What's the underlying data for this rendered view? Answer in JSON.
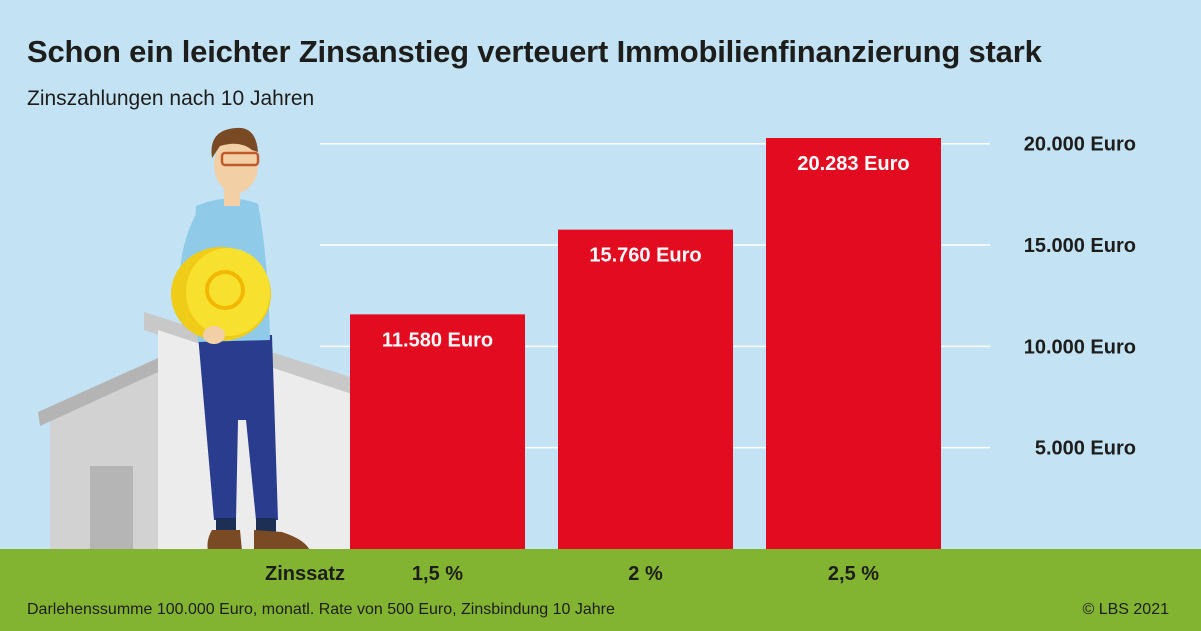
{
  "chart_data": {
    "type": "bar",
    "title": "Schon ein leichter Zinsanstieg verteuert Immobilienfinanzierung stark",
    "subtitle": "Zinszahlungen nach 10 Jahren",
    "xlabel": "Zinssatz",
    "ylabel": "",
    "categories": [
      "1,5 %",
      "2 %",
      "2,5 %"
    ],
    "values": [
      11580,
      15760,
      20283
    ],
    "data_labels": [
      "11.580 Euro",
      "15.760 Euro",
      "20.283 Euro"
    ],
    "yticks": [
      5000,
      10000,
      15000,
      20000
    ],
    "ytick_labels": [
      "5.000 Euro",
      "10.000 Euro",
      "15.000 Euro",
      "20.000 Euro"
    ],
    "ylim": [
      0,
      20283
    ],
    "grid": true,
    "yaxis_position": "right",
    "legend": "none"
  },
  "footnote": "Darlehenssumme 100.000 Euro, monatl. Rate von 500 Euro, Zinsbindung 10 Jahre",
  "copyright": "© LBS 2021",
  "colors": {
    "background": "#c3e3f4",
    "bar": "#e30b1f",
    "ground": "#82b431",
    "gridline": "#ffffff",
    "text": "#1d1d1b"
  }
}
